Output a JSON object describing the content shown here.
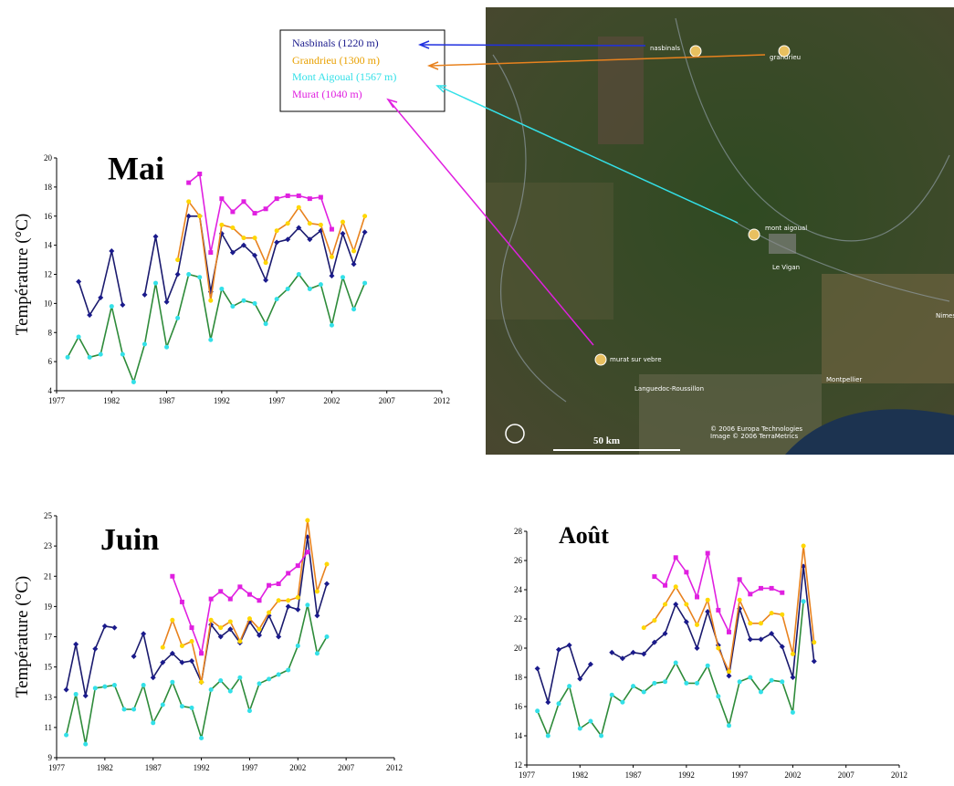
{
  "chart_data": [
    {
      "type": "line",
      "title": "Mai",
      "ylabel": "Température (°C)",
      "x": [
        1978,
        1979,
        1980,
        1981,
        1982,
        1983,
        1984,
        1985,
        1986,
        1987,
        1988,
        1989,
        1990,
        1991,
        1992,
        1993,
        1994,
        1995,
        1996,
        1997,
        1998,
        1999,
        2000,
        2001,
        2002,
        2003,
        2004,
        2005
      ],
      "xlim": [
        1977,
        2012
      ],
      "xticks": [
        1977,
        1982,
        1987,
        1992,
        1997,
        2002,
        2007,
        2012
      ],
      "ylim": [
        4,
        20
      ],
      "yticks": [
        4,
        6,
        8,
        10,
        12,
        14,
        16,
        18,
        20
      ],
      "series": [
        {
          "name": "Nasbinals (1220 m)",
          "color": "#1a1a8c",
          "line_color": "#1a1a6e",
          "values": [
            null,
            11.5,
            9.2,
            10.4,
            13.6,
            9.9,
            null,
            10.6,
            14.6,
            10.1,
            12,
            16,
            16,
            10.8,
            14.8,
            13.5,
            14,
            13.3,
            11.6,
            14.2,
            14.4,
            15.2,
            14.4,
            15,
            11.9,
            14.8,
            12.7,
            14.9
          ]
        },
        {
          "name": "Grandrieu (1300 m)",
          "color": "#ffd700",
          "line_color": "#e8821e",
          "values": [
            null,
            null,
            null,
            null,
            null,
            null,
            null,
            null,
            null,
            null,
            13,
            17,
            16,
            10.2,
            15.4,
            15.2,
            14.5,
            14.5,
            12.8,
            15,
            15.5,
            16.6,
            15.5,
            15.4,
            13.2,
            15.6,
            13.6,
            16
          ]
        },
        {
          "name": "Mont Aigoual (1567 m)",
          "color": "#33e0e8",
          "line_color": "#2e8b3a",
          "values": [
            6.3,
            7.7,
            6.3,
            6.5,
            9.8,
            6.5,
            4.6,
            7.2,
            11.4,
            7,
            9,
            12,
            11.8,
            7.5,
            11,
            9.8,
            10.2,
            10,
            8.6,
            10.3,
            11,
            12,
            11,
            11.3,
            8.5,
            11.8,
            9.6,
            11.4
          ]
        },
        {
          "name": "Murat (1040 m)",
          "color": "#e020e0",
          "line_color": "#e020e0",
          "values": [
            null,
            null,
            null,
            null,
            null,
            null,
            null,
            null,
            null,
            null,
            null,
            18.3,
            18.9,
            13.5,
            17.2,
            16.3,
            17,
            16.2,
            16.5,
            17.2,
            17.4,
            17.4,
            17.2,
            17.3,
            15.1,
            null,
            null,
            null
          ]
        }
      ]
    },
    {
      "type": "line",
      "title": "Juin",
      "ylabel": "Température (°C)",
      "x": [
        1978,
        1979,
        1980,
        1981,
        1982,
        1983,
        1984,
        1985,
        1986,
        1987,
        1988,
        1989,
        1990,
        1991,
        1992,
        1993,
        1994,
        1995,
        1996,
        1997,
        1998,
        1999,
        2000,
        2001,
        2002,
        2003,
        2004,
        2005
      ],
      "xlim": [
        1977,
        2012
      ],
      "xticks": [
        1977,
        1982,
        1987,
        1992,
        1997,
        2002,
        2007,
        2012
      ],
      "ylim": [
        9,
        25
      ],
      "yticks": [
        9,
        11,
        13,
        15,
        17,
        19,
        21,
        23,
        25
      ],
      "series": [
        {
          "color": "#1a1a8c",
          "line_color": "#1a1a6e",
          "values": [
            13.5,
            16.5,
            13.1,
            16.2,
            17.7,
            17.6,
            null,
            15.7,
            17.2,
            14.3,
            15.3,
            15.9,
            15.3,
            15.4,
            14,
            17.8,
            17,
            17.5,
            16.6,
            18,
            17.1,
            18.4,
            17,
            19,
            18.8,
            23.6,
            18.4,
            20.5
          ]
        },
        {
          "color": "#ffd700",
          "line_color": "#e8821e",
          "values": [
            null,
            null,
            null,
            null,
            null,
            null,
            null,
            null,
            null,
            null,
            16.3,
            18.1,
            16.4,
            16.7,
            14,
            18.1,
            17.6,
            18,
            16.7,
            18.2,
            17.5,
            18.6,
            19.4,
            19.4,
            19.6,
            24.7,
            20,
            21.8
          ]
        },
        {
          "color": "#33e0e8",
          "line_color": "#2e8b3a",
          "values": [
            10.5,
            13.2,
            9.9,
            13.6,
            13.7,
            13.8,
            12.2,
            12.2,
            13.8,
            11.3,
            12.5,
            14,
            12.4,
            12.3,
            10.3,
            13.5,
            14.1,
            13.4,
            14.3,
            12.1,
            13.9,
            14.2,
            14.5,
            14.8,
            16.4,
            19.1,
            15.9,
            17
          ]
        },
        {
          "color": "#e020e0",
          "line_color": "#e020e0",
          "values": [
            null,
            null,
            null,
            null,
            null,
            null,
            null,
            null,
            null,
            null,
            null,
            21,
            19.3,
            17.6,
            15.9,
            19.5,
            20,
            19.5,
            20.3,
            19.8,
            19.4,
            20.4,
            20.5,
            21.2,
            21.7,
            22.6,
            null,
            null
          ]
        }
      ]
    },
    {
      "type": "line",
      "title": "Août",
      "x": [
        1978,
        1979,
        1980,
        1981,
        1982,
        1983,
        1984,
        1985,
        1986,
        1987,
        1988,
        1989,
        1990,
        1991,
        1992,
        1993,
        1994,
        1995,
        1996,
        1997,
        1998,
        1999,
        2000,
        2001,
        2002,
        2003,
        2004,
        2005
      ],
      "xlim": [
        1977,
        2012
      ],
      "xticks": [
        1977,
        1982,
        1987,
        1992,
        1997,
        2002,
        2007,
        2012
      ],
      "ylim": [
        12,
        28
      ],
      "yticks": [
        12,
        14,
        16,
        18,
        20,
        22,
        24,
        26,
        28
      ],
      "series": [
        {
          "color": "#1a1a8c",
          "line_color": "#1a1a6e",
          "values": [
            18.6,
            16.3,
            19.9,
            20.2,
            17.9,
            18.9,
            null,
            19.7,
            19.3,
            19.7,
            19.6,
            20.4,
            21,
            23,
            21.8,
            20,
            22.5,
            20.2,
            18.1,
            22.7,
            20.6,
            20.6,
            21,
            20.1,
            18,
            25.6,
            19.1,
            null
          ]
        },
        {
          "color": "#ffd700",
          "line_color": "#e8821e",
          "values": [
            null,
            null,
            null,
            null,
            null,
            null,
            null,
            null,
            null,
            null,
            21.4,
            21.9,
            23,
            24.2,
            23,
            21.6,
            23.3,
            20,
            18.4,
            23.3,
            21.7,
            21.7,
            22.4,
            22.3,
            19.6,
            27,
            20.4,
            null
          ]
        },
        {
          "color": "#33e0e8",
          "line_color": "#2e8b3a",
          "values": [
            15.7,
            14,
            16.2,
            17.4,
            14.5,
            15,
            14,
            16.8,
            16.3,
            17.4,
            17,
            17.6,
            17.7,
            19,
            17.6,
            17.6,
            18.8,
            16.7,
            14.7,
            17.7,
            18,
            17,
            17.8,
            17.7,
            15.6,
            23.2,
            null,
            null
          ]
        },
        {
          "color": "#e020e0",
          "line_color": "#e020e0",
          "values": [
            null,
            null,
            null,
            null,
            null,
            null,
            null,
            null,
            null,
            null,
            null,
            24.9,
            24.3,
            26.2,
            25.2,
            23.5,
            26.5,
            22.6,
            21.1,
            24.7,
            23.7,
            24.1,
            24.1,
            23.8,
            null,
            null,
            null,
            null
          ]
        }
      ]
    }
  ],
  "map": {
    "labels": [
      "nasbinals",
      "grandrieu",
      "mont aigoual",
      "Le Vigan",
      "Nimes",
      "murat sur vebre",
      "Montpellier",
      "Languedoc-Roussillon",
      "50 km",
      "© 2006 Europa Technologies",
      "Image © 2006 TerraMetrics"
    ]
  }
}
